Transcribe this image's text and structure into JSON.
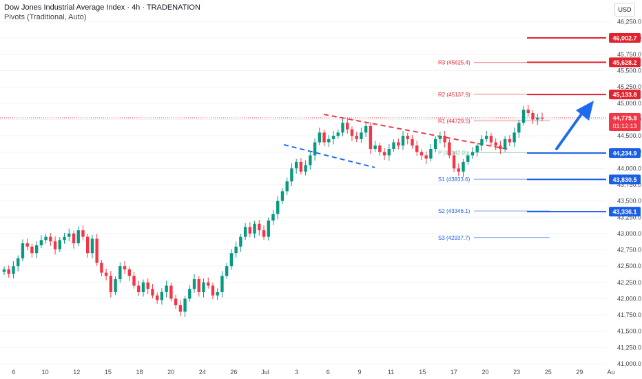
{
  "header": {
    "title": "Dow Jones Industrial Average Index · 4h · TRADENATION",
    "subtitle": "Pivots (Traditional, Auto)",
    "currency_button": "USD"
  },
  "colors": {
    "up": "#089981",
    "down": "#f23645",
    "resistance": "#e0232e",
    "support": "#1b5ee6",
    "pivot": "#7cc7a0",
    "arrow": "#1d6cf0"
  },
  "chart_data": {
    "type": "candlestick",
    "y_axis": {
      "ylim": [
        41000,
        46500
      ],
      "tick_labels": [
        "41,000.0",
        "41,250.0",
        "41,500.0",
        "41,750.0",
        "42,000.0",
        "42,250.0",
        "42,500.0",
        "42,750.0",
        "43,000.0",
        "43,250.0",
        "43,500.0",
        "43,750.0",
        "44,000.0",
        "44,250.0",
        "44,500.0",
        "44,750.0",
        "45,000.0",
        "45,250.0",
        "45,500.0",
        "45,750.0",
        "46,000.0",
        "46,250.0"
      ],
      "tick_values": [
        41000,
        41250,
        41500,
        41750,
        42000,
        42250,
        42500,
        42750,
        43000,
        43250,
        43500,
        43750,
        44000,
        44250,
        44500,
        44750,
        45000,
        45250,
        45500,
        45750,
        46000,
        46250
      ]
    },
    "x_axis": {
      "tick_labels": [
        "6",
        "10",
        "12",
        "15",
        "18",
        "20",
        "24",
        "26",
        "Jul",
        "3",
        "6",
        "9",
        "11",
        "15",
        "17",
        "20",
        "23",
        "25",
        "29",
        "Au"
      ]
    },
    "pivots": [
      {
        "label": "R3",
        "value": 45625.4,
        "text": "R3 (45625.4)",
        "kind": "resistance"
      },
      {
        "label": "R2",
        "value": 45137.9,
        "text": "R2 (45137.9)",
        "kind": "resistance"
      },
      {
        "label": "R1",
        "value": 44729.5,
        "text": "R1 (44729.5)",
        "kind": "resistance"
      },
      {
        "label": "P",
        "value": 44242.0,
        "text": "P (44242.0)",
        "kind": "pivot"
      },
      {
        "label": "S1",
        "value": 43833.6,
        "text": "S1 (43833.6)",
        "kind": "support"
      },
      {
        "label": "S2",
        "value": 43346.1,
        "text": "S2 (43346.1)",
        "kind": "support"
      },
      {
        "label": "S3",
        "value": 42937.7,
        "text": "S3 (42937.7)",
        "kind": "support"
      }
    ],
    "price_labels": [
      {
        "value": 46002.7,
        "text": "46,002.7",
        "kind": "resistance"
      },
      {
        "value": 45628.2,
        "text": "45,628.2",
        "kind": "resistance"
      },
      {
        "value": 45133.8,
        "text": "45,133.8",
        "kind": "resistance"
      },
      {
        "value": 44234.9,
        "text": "44,234.9",
        "kind": "support"
      },
      {
        "value": 43830.5,
        "text": "43,830.5",
        "kind": "support"
      },
      {
        "value": 43336.1,
        "text": "43,336.1",
        "kind": "support"
      }
    ],
    "last_price": {
      "value": 44775.8,
      "text": "44,775.8",
      "countdown": "01:12:13"
    },
    "closes": [
      42450,
      42380,
      42500,
      42620,
      42850,
      42800,
      42700,
      42820,
      42900,
      42950,
      42880,
      42760,
      42900,
      42950,
      43000,
      42850,
      43050,
      42950,
      42700,
      42920,
      42550,
      42400,
      42350,
      42100,
      42300,
      42500,
      42450,
      42350,
      42200,
      42100,
      42250,
      42150,
      42050,
      41980,
      42100,
      42200,
      42000,
      41900,
      41800,
      42000,
      42150,
      42300,
      42100,
      42250,
      42200,
      42050,
      42100,
      42350,
      42500,
      42700,
      42800,
      42950,
      43100,
      43000,
      43150,
      43050,
      42950,
      43200,
      43300,
      43500,
      43650,
      43800,
      44000,
      44100,
      43950,
      44050,
      44200,
      44400,
      44550,
      44400,
      44450,
      44500,
      44550,
      44700,
      44600,
      44500,
      44450,
      44550,
      44650,
      44300,
      44350,
      44250,
      44200,
      44300,
      44400,
      44350,
      44500,
      44450,
      44350,
      44250,
      44200,
      44150,
      44300,
      44450,
      44500,
      44400,
      44200,
      44000,
      43950,
      44100,
      44200,
      44250,
      44350,
      44450,
      44500,
      44400,
      44350,
      44300,
      44450,
      44400,
      44550,
      44700,
      44900,
      44850,
      44750,
      44780,
      44776
    ]
  }
}
